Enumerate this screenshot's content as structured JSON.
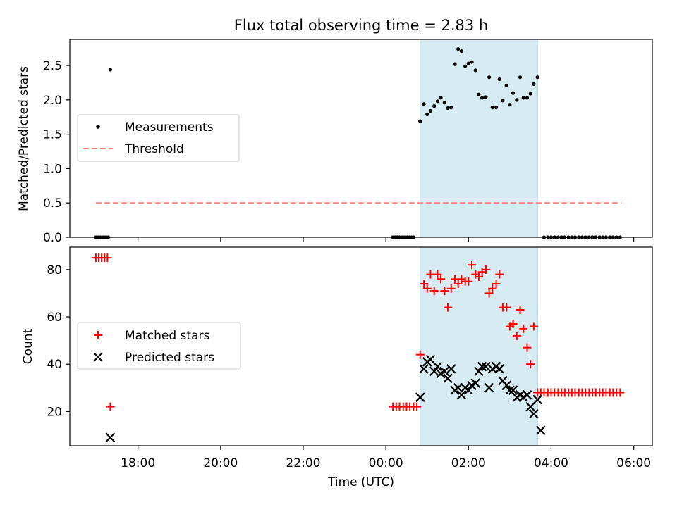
{
  "chart_data": [
    {
      "type": "scatter",
      "title": "Flux total observing time = 2.83 h",
      "xlabel": "",
      "ylabel": "Matched/Predicted stars",
      "xlim": [
        16.35,
        30.45
      ],
      "ylim": [
        0,
        2.88
      ],
      "yticks": [
        "0.0",
        "0.5",
        "1.0",
        "1.5",
        "2.0",
        "2.5"
      ],
      "ytick_values": [
        0,
        0.5,
        1.0,
        1.5,
        2.0,
        2.5
      ],
      "shaded_span": [
        24.83,
        27.67
      ],
      "legend": {
        "placement": "center-left",
        "items": [
          {
            "label": "Measurements",
            "marker": "dot",
            "color": "#000000"
          },
          {
            "label": "Threshold",
            "marker": "dashed-line",
            "color": "#ff7f7f"
          }
        ]
      },
      "threshold": {
        "value": 0.5,
        "x_range": [
          16.98,
          29.7
        ]
      },
      "measurements": [
        [
          16.98,
          0
        ],
        [
          17.03,
          0
        ],
        [
          17.08,
          0
        ],
        [
          17.13,
          0
        ],
        [
          17.18,
          0
        ],
        [
          17.23,
          0
        ],
        [
          17.28,
          0
        ],
        [
          17.33,
          2.44
        ],
        [
          24.17,
          0
        ],
        [
          24.22,
          0
        ],
        [
          24.27,
          0
        ],
        [
          24.32,
          0
        ],
        [
          24.37,
          0
        ],
        [
          24.42,
          0
        ],
        [
          24.47,
          0
        ],
        [
          24.52,
          0
        ],
        [
          24.57,
          0
        ],
        [
          24.62,
          0
        ],
        [
          24.67,
          0
        ],
        [
          24.83,
          1.69
        ],
        [
          24.92,
          1.94
        ],
        [
          25.0,
          1.79
        ],
        [
          25.08,
          1.84
        ],
        [
          25.17,
          1.91
        ],
        [
          25.25,
          1.98
        ],
        [
          25.33,
          2.03
        ],
        [
          25.42,
          1.96
        ],
        [
          25.5,
          1.88
        ],
        [
          25.58,
          1.89
        ],
        [
          25.67,
          2.52
        ],
        [
          25.75,
          2.74
        ],
        [
          25.83,
          2.71
        ],
        [
          25.92,
          2.49
        ],
        [
          26.0,
          2.53
        ],
        [
          26.08,
          2.55
        ],
        [
          26.17,
          2.43
        ],
        [
          26.25,
          2.08
        ],
        [
          26.33,
          2.03
        ],
        [
          26.42,
          2.04
        ],
        [
          26.5,
          2.33
        ],
        [
          26.58,
          1.89
        ],
        [
          26.67,
          1.89
        ],
        [
          26.75,
          2.3
        ],
        [
          26.83,
          1.99
        ],
        [
          26.92,
          2.21
        ],
        [
          27.0,
          1.93
        ],
        [
          27.08,
          2.1
        ],
        [
          27.17,
          2.0
        ],
        [
          27.25,
          2.33
        ],
        [
          27.33,
          2.03
        ],
        [
          27.42,
          2.03
        ],
        [
          27.5,
          2.09
        ],
        [
          27.58,
          2.23
        ],
        [
          27.67,
          2.33
        ],
        [
          27.83,
          0
        ],
        [
          27.92,
          0
        ],
        [
          28.0,
          0
        ],
        [
          28.08,
          0
        ],
        [
          28.17,
          0
        ],
        [
          28.25,
          0
        ],
        [
          28.33,
          0
        ],
        [
          28.42,
          0
        ],
        [
          28.5,
          0
        ],
        [
          28.58,
          0
        ],
        [
          28.67,
          0
        ],
        [
          28.75,
          0
        ],
        [
          28.83,
          0
        ],
        [
          28.92,
          0
        ],
        [
          29.0,
          0
        ],
        [
          29.08,
          0
        ],
        [
          29.17,
          0
        ],
        [
          29.25,
          0
        ],
        [
          29.33,
          0
        ],
        [
          29.42,
          0
        ],
        [
          29.5,
          0
        ],
        [
          29.58,
          0
        ],
        [
          29.67,
          0
        ]
      ]
    },
    {
      "type": "scatter",
      "title": "",
      "xlabel": "Time (UTC)",
      "ylabel": "Count",
      "xlim": [
        16.35,
        30.45
      ],
      "ylim": [
        5.5,
        89.5
      ],
      "yticks": [
        "20",
        "40",
        "60",
        "80"
      ],
      "ytick_values": [
        20,
        40,
        60,
        80
      ],
      "xticks": [
        "18:00",
        "20:00",
        "22:00",
        "00:00",
        "02:00",
        "04:00",
        "06:00"
      ],
      "xtick_values": [
        18,
        20,
        22,
        24,
        26,
        28,
        30
      ],
      "shaded_span": [
        24.83,
        27.67
      ],
      "legend": {
        "placement": "center-left",
        "items": [
          {
            "label": "Matched stars",
            "marker": "plus",
            "color": "#ff0000"
          },
          {
            "label": "Predicted stars",
            "marker": "x",
            "color": "#000000"
          }
        ]
      },
      "series": [
        {
          "name": "Matched stars",
          "marker": "plus",
          "color": "#ff0000",
          "points": [
            [
              16.98,
              85
            ],
            [
              17.05,
              85
            ],
            [
              17.12,
              85
            ],
            [
              17.19,
              85
            ],
            [
              17.26,
              85
            ],
            [
              17.33,
              22
            ],
            [
              24.17,
              22
            ],
            [
              24.25,
              22
            ],
            [
              24.33,
              22
            ],
            [
              24.42,
              22
            ],
            [
              24.5,
              22
            ],
            [
              24.58,
              22
            ],
            [
              24.67,
              22
            ],
            [
              24.75,
              22
            ],
            [
              24.83,
              44
            ],
            [
              24.92,
              74
            ],
            [
              25.0,
              72
            ],
            [
              25.08,
              78
            ],
            [
              25.17,
              71
            ],
            [
              25.25,
              78
            ],
            [
              25.33,
              76
            ],
            [
              25.42,
              71
            ],
            [
              25.5,
              64
            ],
            [
              25.58,
              72
            ],
            [
              25.67,
              76
            ],
            [
              25.75,
              74
            ],
            [
              25.83,
              76
            ],
            [
              25.92,
              75
            ],
            [
              26.0,
              75
            ],
            [
              26.08,
              82
            ],
            [
              26.17,
              78
            ],
            [
              26.25,
              77
            ],
            [
              26.33,
              79
            ],
            [
              26.42,
              80
            ],
            [
              26.5,
              70
            ],
            [
              26.58,
              72
            ],
            [
              26.67,
              74
            ],
            [
              26.75,
              78
            ],
            [
              26.83,
              64
            ],
            [
              26.92,
              64
            ],
            [
              27.0,
              56
            ],
            [
              27.08,
              57
            ],
            [
              27.17,
              52
            ],
            [
              27.25,
              63
            ],
            [
              27.33,
              55
            ],
            [
              27.42,
              47
            ],
            [
              27.5,
              40
            ],
            [
              27.58,
              56
            ],
            [
              27.67,
              28
            ],
            [
              27.75,
              28
            ],
            [
              27.83,
              28
            ],
            [
              27.92,
              28
            ],
            [
              28.0,
              28
            ],
            [
              28.08,
              28
            ],
            [
              28.17,
              28
            ],
            [
              28.25,
              28
            ],
            [
              28.33,
              28
            ],
            [
              28.42,
              28
            ],
            [
              28.5,
              28
            ],
            [
              28.58,
              28
            ],
            [
              28.67,
              28
            ],
            [
              28.75,
              28
            ],
            [
              28.83,
              28
            ],
            [
              28.92,
              28
            ],
            [
              29.0,
              28
            ],
            [
              29.08,
              28
            ],
            [
              29.17,
              28
            ],
            [
              29.25,
              28
            ],
            [
              29.33,
              28
            ],
            [
              29.42,
              28
            ],
            [
              29.5,
              28
            ],
            [
              29.58,
              28
            ],
            [
              29.67,
              28
            ]
          ]
        },
        {
          "name": "Predicted stars",
          "marker": "x",
          "color": "#000000",
          "points": [
            [
              17.33,
              9
            ],
            [
              24.83,
              26
            ],
            [
              24.92,
              38
            ],
            [
              25.0,
              41
            ],
            [
              25.08,
              42
            ],
            [
              25.17,
              37
            ],
            [
              25.25,
              39
            ],
            [
              25.33,
              36
            ],
            [
              25.42,
              37
            ],
            [
              25.5,
              34
            ],
            [
              25.58,
              38
            ],
            [
              25.67,
              29
            ],
            [
              25.75,
              30
            ],
            [
              25.83,
              27
            ],
            [
              25.92,
              30
            ],
            [
              26.0,
              29
            ],
            [
              26.08,
              31
            ],
            [
              26.17,
              32
            ],
            [
              26.25,
              37
            ],
            [
              26.33,
              39
            ],
            [
              26.42,
              39
            ],
            [
              26.5,
              30
            ],
            [
              26.58,
              38
            ],
            [
              26.67,
              39
            ],
            [
              26.75,
              38
            ],
            [
              26.83,
              33
            ],
            [
              26.92,
              31
            ],
            [
              27.0,
              29
            ],
            [
              27.08,
              29
            ],
            [
              27.17,
              26
            ],
            [
              27.25,
              27
            ],
            [
              27.33,
              26
            ],
            [
              27.42,
              27
            ],
            [
              27.5,
              22
            ],
            [
              27.58,
              19
            ],
            [
              27.67,
              25
            ],
            [
              27.75,
              12
            ]
          ]
        }
      ]
    }
  ]
}
